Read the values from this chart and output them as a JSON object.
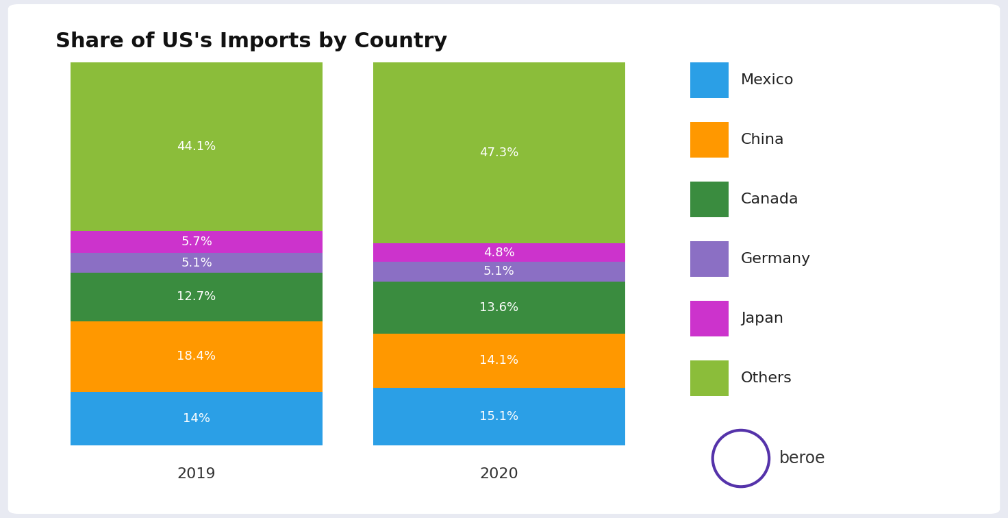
{
  "title": "Share of US's Imports by Country",
  "years": [
    "2019",
    "2020"
  ],
  "categories": [
    "Mexico",
    "China",
    "Canada",
    "Germany",
    "Japan",
    "Others"
  ],
  "colors": {
    "Mexico": "#2B9FE6",
    "China": "#FF9800",
    "Canada": "#3A8C3F",
    "Germany": "#8B6FC4",
    "Japan": "#CC33CC",
    "Others": "#8BBD3A"
  },
  "values": {
    "2019": [
      14.0,
      18.4,
      12.7,
      5.1,
      5.7,
      44.1
    ],
    "2020": [
      15.1,
      14.1,
      13.6,
      5.1,
      4.8,
      47.3
    ]
  },
  "labels": {
    "2019": [
      "14%",
      "18.4%",
      "12.7%",
      "5.1%",
      "5.7%",
      "44.1%"
    ],
    "2020": [
      "15.1%",
      "14.1%",
      "13.6%",
      "5.1%",
      "4.8%",
      "47.3%"
    ]
  },
  "background_color": "#FFFFFF",
  "outer_background": "#E8EAF2",
  "title_fontsize": 22,
  "label_fontsize": 13,
  "legend_fontsize": 16,
  "year_fontsize": 16
}
